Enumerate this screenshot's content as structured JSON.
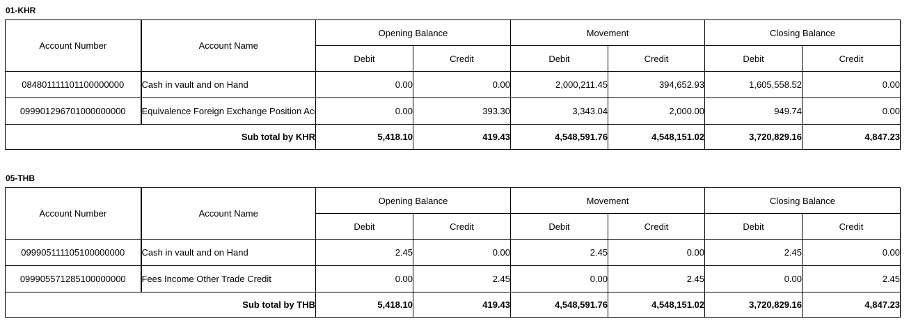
{
  "columns": {
    "account_number": "Account Number",
    "account_name": "Account Name",
    "opening_balance": "Opening Balance",
    "movement": "Movement",
    "closing_balance": "Closing Balance",
    "debit": "Debit",
    "credit": "Credit"
  },
  "sections": [
    {
      "title": "01-KHR",
      "rows": [
        {
          "account_number": "084801111101100000000",
          "account_name": "Cash in vault and on Hand",
          "values": [
            "0.00",
            "0.00",
            "2,000,211.45",
            "394,652.93",
            "1,605,558.52",
            "0.00"
          ]
        },
        {
          "account_number": "099901296701000000000",
          "account_name": "Equivalence Foreign Exchange Position Account - KHR",
          "values": [
            "0.00",
            "393.30",
            "3,343.04",
            "2,000.00",
            "949.74",
            "0.00"
          ]
        }
      ],
      "subtotal": {
        "label": "Sub total by KHR",
        "values": [
          "5,418.10",
          "419.43",
          "4,548,591.76",
          "4,548,151.02",
          "3,720,829.16",
          "4,847.23"
        ]
      }
    },
    {
      "title": "05-THB",
      "rows": [
        {
          "account_number": "099905111105100000000",
          "account_name": "Cash in vault and on Hand",
          "values": [
            "2.45",
            "0.00",
            "2.45",
            "0.00",
            "2.45",
            "0.00"
          ]
        },
        {
          "account_number": "099905571285100000000",
          "account_name": "Fees Income Other Trade Credit",
          "values": [
            "0.00",
            "2.45",
            "0.00",
            "2.45",
            "0.00",
            "2.45"
          ]
        }
      ],
      "subtotal": {
        "label": "Sub total by THB",
        "values": [
          "5,418.10",
          "419.43",
          "4,548,591.76",
          "4,548,151.02",
          "3,720,829.16",
          "4,847.23"
        ]
      }
    }
  ]
}
